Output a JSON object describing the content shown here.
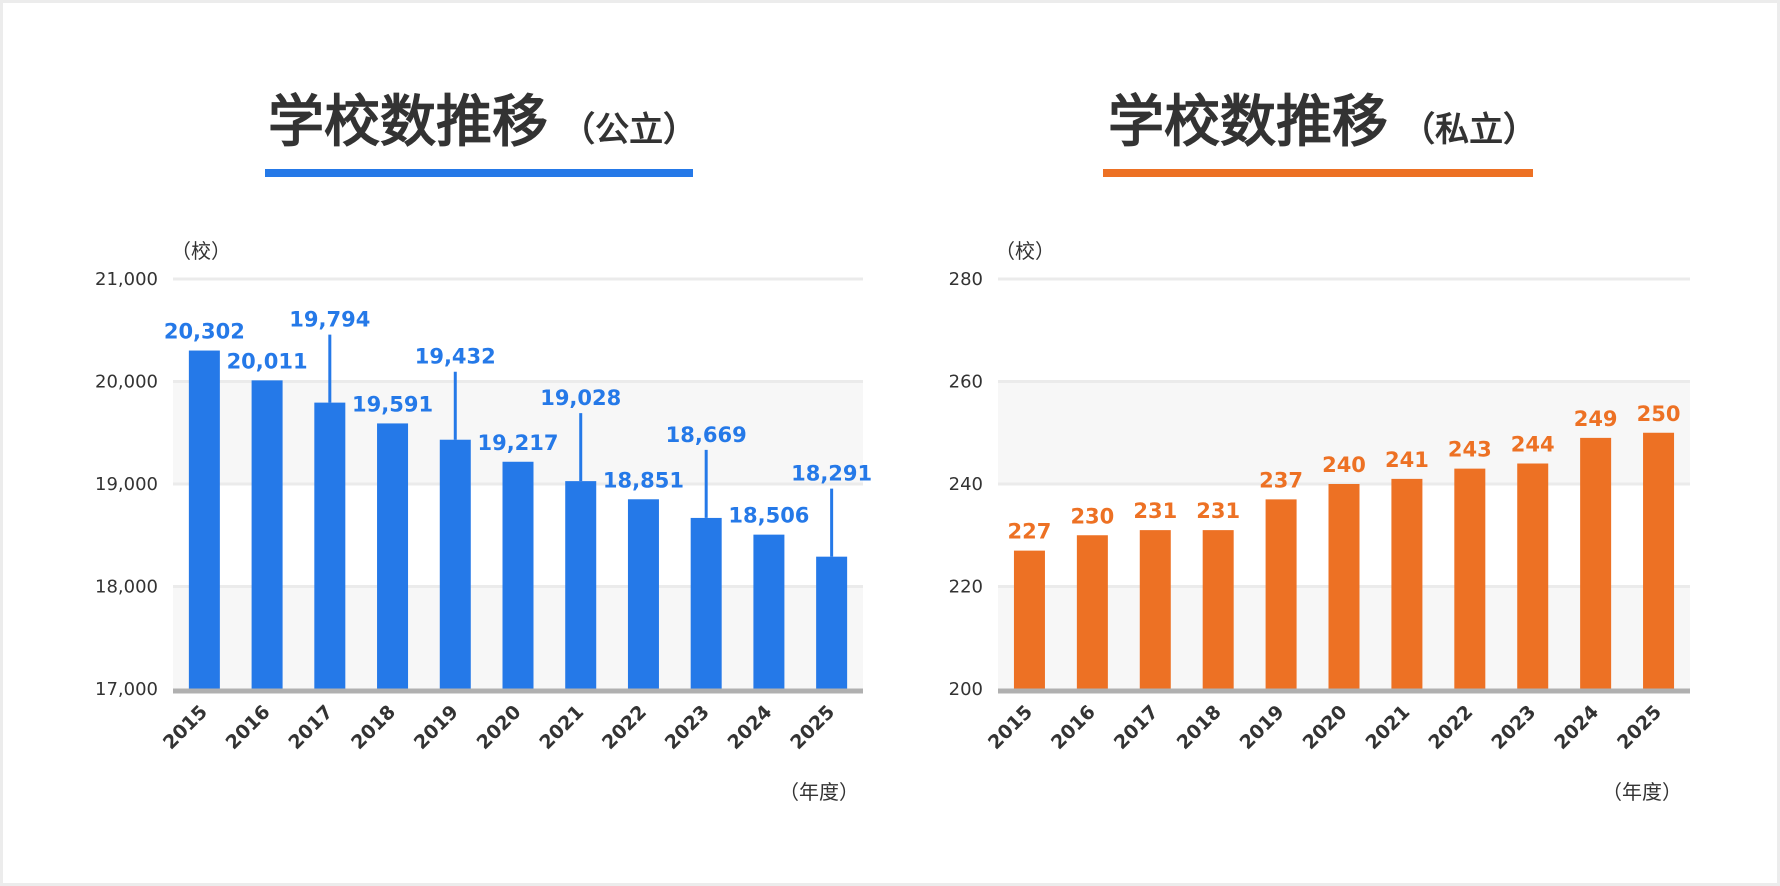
{
  "colors": {
    "public": "#2579e8",
    "private": "#ed7124",
    "axis": "#b0b0b0",
    "grid": "#ebebeb",
    "band": "#f7f7f7",
    "text": "#333333"
  },
  "chart_data": [
    {
      "type": "bar",
      "title": "学校数推移",
      "subtitle": "（公立）",
      "ylabel": "（校）",
      "xlabel": "（年度）",
      "categories": [
        "2015",
        "2016",
        "2017",
        "2018",
        "2019",
        "2020",
        "2021",
        "2022",
        "2023",
        "2024",
        "2025"
      ],
      "values": [
        20302,
        20011,
        19794,
        19591,
        19432,
        19217,
        19028,
        18851,
        18669,
        18506,
        18291
      ],
      "value_labels": [
        "20,302",
        "20,011",
        "19,794",
        "19,591",
        "19,432",
        "19,217",
        "19,028",
        "18,851",
        "18,669",
        "18,506",
        "18,291"
      ],
      "yticks": [
        17000,
        18000,
        19000,
        20000,
        21000
      ],
      "ytick_labels": [
        "17,000",
        "18,000",
        "19,000",
        "20,000",
        "21,000"
      ],
      "ylim": [
        17000,
        21000
      ],
      "leader_lines": [
        false,
        false,
        true,
        false,
        true,
        false,
        true,
        false,
        true,
        false,
        true
      ],
      "color": "#2579e8",
      "grid": true,
      "legend": "none"
    },
    {
      "type": "bar",
      "title": "学校数推移",
      "subtitle": "（私立）",
      "ylabel": "（校）",
      "xlabel": "（年度）",
      "categories": [
        "2015",
        "2016",
        "2017",
        "2018",
        "2019",
        "2020",
        "2021",
        "2022",
        "2023",
        "2024",
        "2025"
      ],
      "values": [
        227,
        230,
        231,
        231,
        237,
        240,
        241,
        243,
        244,
        249,
        250
      ],
      "value_labels": [
        "227",
        "230",
        "231",
        "231",
        "237",
        "240",
        "241",
        "243",
        "244",
        "249",
        "250"
      ],
      "yticks": [
        200,
        220,
        240,
        260,
        280
      ],
      "ytick_labels": [
        "200",
        "220",
        "240",
        "260",
        "280"
      ],
      "ylim": [
        200,
        280
      ],
      "leader_lines": [
        false,
        false,
        false,
        false,
        false,
        false,
        false,
        false,
        false,
        false,
        false
      ],
      "color": "#ed7124",
      "grid": true,
      "legend": "none"
    }
  ]
}
